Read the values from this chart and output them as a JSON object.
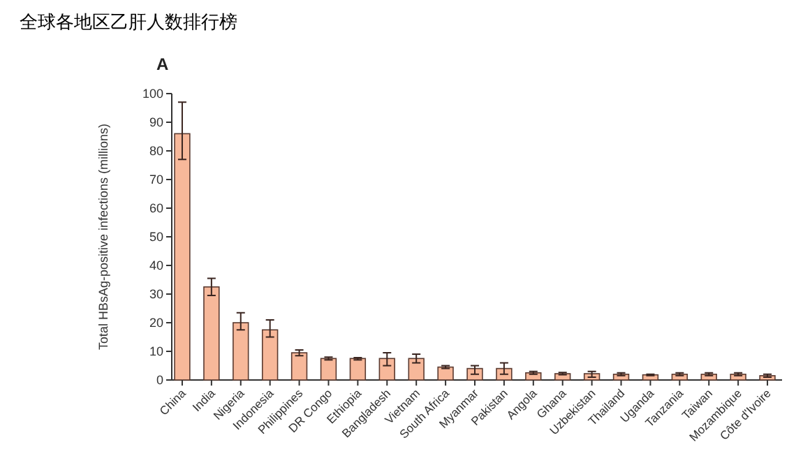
{
  "chart_data": {
    "type": "bar",
    "title": "全球各地区乙肝人数排行榜",
    "ylabel": "Total HBsAg-positive infections (millions)",
    "annotations": [
      "A"
    ],
    "categories": [
      "China",
      "India",
      "Nigeria",
      "Indonesia",
      "Philippines",
      "DR Congo",
      "Ethiopia",
      "Bangladesh",
      "Vietnam",
      "South Africa",
      "Myanmar",
      "Pakistan",
      "Angola",
      "Ghana",
      "Uzbekistan",
      "Thailand",
      "Uganda",
      "Tanzania",
      "Taiwan",
      "Mozambique",
      "Côte d'Ivoire"
    ],
    "values": [
      86,
      32.5,
      20,
      17.5,
      9.5,
      7.5,
      7.5,
      7.5,
      7.5,
      4.5,
      4,
      4,
      2.5,
      2.2,
      2.2,
      2,
      1.8,
      2,
      2,
      2,
      1.5
    ],
    "errors": [
      [
        77,
        97
      ],
      [
        29.5,
        35.5
      ],
      [
        17.5,
        23.5
      ],
      [
        15,
        21
      ],
      [
        8.5,
        10.5
      ],
      [
        7,
        8
      ],
      [
        7,
        7.8
      ],
      [
        5,
        9.5
      ],
      [
        6,
        9
      ],
      [
        4,
        5
      ],
      [
        2,
        5
      ],
      [
        2,
        6
      ],
      [
        2,
        3
      ],
      [
        1.8,
        2.6
      ],
      [
        1,
        3
      ],
      [
        1.5,
        2.5
      ],
      [
        1.5,
        2
      ],
      [
        1.5,
        2.5
      ],
      [
        1.5,
        2.5
      ],
      [
        1.5,
        2.5
      ],
      [
        1,
        2
      ]
    ],
    "color": "#f7b89a",
    "ylim": [
      0,
      100
    ],
    "yticks": [
      0,
      10,
      20,
      30,
      40,
      50,
      60,
      70,
      80,
      90,
      100
    ],
    "grid": false
  }
}
